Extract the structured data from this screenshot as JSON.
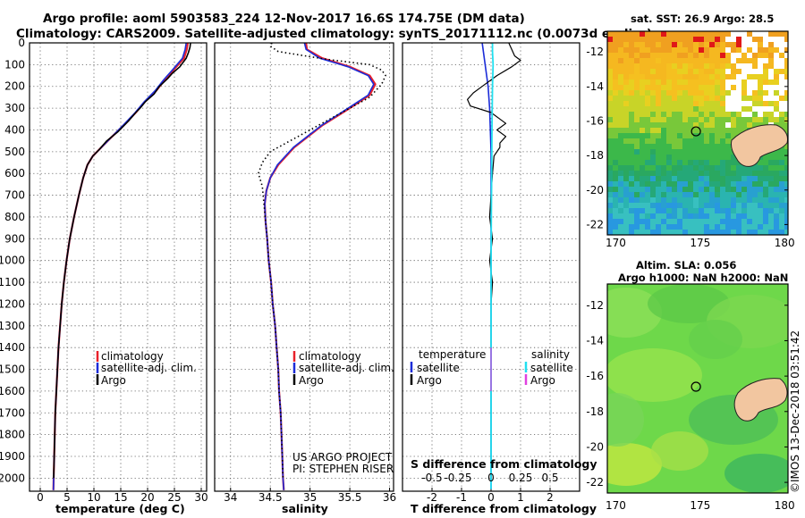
{
  "header": {
    "title_line1": "Argo profile: aoml 5903583_224 12-Nov-2017 16.6S 174.75E (DM data)",
    "title_line2": "Climatology: CARS2009. Satellite-adjusted climatology: synTS_20171112.nc (0.0073d earlier)"
  },
  "colors": {
    "climatology": "#e8202a",
    "satellite": "#1b2cd8",
    "argo": "#000000",
    "satellite_salinity": "#21e0f0",
    "argo_salinity": "#e040e0"
  },
  "depth_axis": {
    "ticks": [
      0,
      100,
      200,
      300,
      400,
      500,
      600,
      700,
      800,
      900,
      1000,
      1100,
      1200,
      1300,
      1400,
      1500,
      1600,
      1700,
      1800,
      1900,
      2000
    ],
    "range": [
      0,
      2060
    ]
  },
  "legend": {
    "climatology": "climatology",
    "satellite_adj": "satellite-adj. clim.",
    "argo": "Argo",
    "temperature": "temperature",
    "salinity": "salinity",
    "satellite": "satellite"
  },
  "credits": {
    "line1": "US ARGO PROJECT",
    "line2": "PI: STEPHEN RISER"
  },
  "maps": {
    "sst_title": "sat. SST: 26.9 Argo: 28.5",
    "sla_title1": "Altim. SLA: 0.056",
    "sla_title2": "Argo h1000: NaN h2000: NaN",
    "lat_ticks": [
      "-12",
      "-14",
      "-16",
      "-18",
      "-20",
      "-22"
    ],
    "lon_ticks": [
      "170",
      "175",
      "180"
    ],
    "float_position": {
      "lat": -16.6,
      "lon": 174.75
    },
    "extent": {
      "lon": [
        169.5,
        180.2
      ],
      "lat": [
        -22.6,
        -10.8
      ]
    }
  },
  "footer": {
    "timestamp": "©IMOS 13-Dec-2018 03:51:42"
  },
  "chart_data": [
    {
      "type": "line",
      "name": "temperature",
      "xlabel": "temperature (deg C)",
      "ylabel": "depth",
      "xlim": [
        -2,
        31
      ],
      "ylim": [
        2060,
        0
      ],
      "xticks": [
        0,
        5,
        10,
        15,
        20,
        25,
        30
      ],
      "series": [
        {
          "name": "climatology",
          "points": [
            [
              27.5,
              0
            ],
            [
              27.3,
              30
            ],
            [
              26.8,
              70
            ],
            [
              25.0,
              120
            ],
            [
              23.2,
              170
            ],
            [
              21.6,
              220
            ],
            [
              19.5,
              270
            ],
            [
              17.8,
              320
            ],
            [
              15.5,
              380
            ],
            [
              13.0,
              440
            ],
            [
              11.0,
              490
            ],
            [
              9.8,
              520
            ],
            [
              8.8,
              560
            ],
            [
              8.0,
              620
            ],
            [
              7.2,
              700
            ],
            [
              6.3,
              800
            ],
            [
              5.5,
              900
            ],
            [
              4.9,
              1000
            ],
            [
              4.4,
              1100
            ],
            [
              4.0,
              1200
            ],
            [
              3.7,
              1300
            ],
            [
              3.4,
              1400
            ],
            [
              3.2,
              1500
            ],
            [
              3.0,
              1600
            ],
            [
              2.8,
              1700
            ],
            [
              2.7,
              1800
            ],
            [
              2.6,
              1900
            ],
            [
              2.5,
              2000
            ],
            [
              2.45,
              2055
            ]
          ]
        },
        {
          "name": "satellite-adj. clim.",
          "points": [
            [
              27.2,
              0
            ],
            [
              27.0,
              30
            ],
            [
              26.5,
              70
            ],
            [
              24.8,
              120
            ],
            [
              23.0,
              170
            ],
            [
              21.4,
              220
            ],
            [
              19.4,
              270
            ],
            [
              17.7,
              320
            ],
            [
              15.4,
              380
            ],
            [
              13.0,
              440
            ],
            [
              11.0,
              490
            ],
            [
              9.8,
              520
            ],
            [
              8.8,
              560
            ],
            [
              8.0,
              620
            ],
            [
              7.2,
              700
            ],
            [
              6.3,
              800
            ],
            [
              5.5,
              900
            ],
            [
              4.9,
              1000
            ],
            [
              4.4,
              1100
            ],
            [
              4.0,
              1200
            ],
            [
              3.7,
              1300
            ],
            [
              3.4,
              1400
            ],
            [
              3.2,
              1500
            ],
            [
              3.0,
              1600
            ],
            [
              2.8,
              1700
            ],
            [
              2.7,
              1800
            ],
            [
              2.6,
              1900
            ],
            [
              2.5,
              2000
            ],
            [
              2.45,
              2055
            ]
          ]
        },
        {
          "name": "Argo",
          "points": [
            [
              28.0,
              0
            ],
            [
              27.9,
              20
            ],
            [
              27.6,
              45
            ],
            [
              27.2,
              70
            ],
            [
              26.0,
              110
            ],
            [
              24.6,
              140
            ],
            [
              23.7,
              165
            ],
            [
              22.2,
              200
            ],
            [
              21.2,
              235
            ],
            [
              19.6,
              270
            ],
            [
              18.6,
              300
            ],
            [
              17.8,
              320
            ],
            [
              16.4,
              360
            ],
            [
              14.4,
              410
            ],
            [
              12.4,
              450
            ],
            [
              11.0,
              490
            ],
            [
              9.8,
              520
            ],
            [
              8.8,
              560
            ],
            [
              8.0,
              620
            ],
            [
              7.2,
              700
            ],
            [
              6.3,
              800
            ],
            [
              5.5,
              900
            ],
            [
              4.9,
              1000
            ],
            [
              4.4,
              1100
            ],
            [
              4.0,
              1200
            ],
            [
              3.7,
              1300
            ],
            [
              3.4,
              1400
            ],
            [
              3.2,
              1500
            ],
            [
              3.0,
              1600
            ],
            [
              2.8,
              1700
            ],
            [
              2.7,
              1800
            ],
            [
              2.6,
              1900
            ],
            [
              2.5,
              2000
            ]
          ]
        }
      ]
    },
    {
      "type": "line",
      "name": "salinity",
      "xlabel": "salinity",
      "ylabel": "depth",
      "xlim": [
        33.8,
        36.05
      ],
      "ylim": [
        2060,
        0
      ],
      "xticks": [
        34,
        34.5,
        35,
        35.5,
        36
      ],
      "series": [
        {
          "name": "climatology",
          "points": [
            [
              34.95,
              0
            ],
            [
              34.96,
              30
            ],
            [
              35.15,
              70
            ],
            [
              35.5,
              110
            ],
            [
              35.75,
              150
            ],
            [
              35.82,
              190
            ],
            [
              35.75,
              240
            ],
            [
              35.5,
              300
            ],
            [
              35.15,
              380
            ],
            [
              34.8,
              480
            ],
            [
              34.6,
              560
            ],
            [
              34.5,
              620
            ],
            [
              34.45,
              680
            ],
            [
              34.43,
              740
            ],
            [
              34.44,
              820
            ],
            [
              34.46,
              900
            ],
            [
              34.48,
              1000
            ],
            [
              34.51,
              1100
            ],
            [
              34.53,
              1200
            ],
            [
              34.56,
              1300
            ],
            [
              34.58,
              1400
            ],
            [
              34.6,
              1500
            ],
            [
              34.61,
              1600
            ],
            [
              34.63,
              1700
            ],
            [
              34.64,
              1800
            ],
            [
              34.65,
              1900
            ],
            [
              34.66,
              2000
            ],
            [
              34.67,
              2055
            ]
          ]
        },
        {
          "name": "satellite-adj. clim.",
          "points": [
            [
              34.93,
              0
            ],
            [
              34.95,
              30
            ],
            [
              35.12,
              70
            ],
            [
              35.48,
              110
            ],
            [
              35.73,
              150
            ],
            [
              35.8,
              190
            ],
            [
              35.73,
              240
            ],
            [
              35.48,
              300
            ],
            [
              35.14,
              380
            ],
            [
              34.79,
              480
            ],
            [
              34.59,
              560
            ],
            [
              34.5,
              620
            ],
            [
              34.45,
              680
            ],
            [
              34.43,
              740
            ],
            [
              34.44,
              820
            ],
            [
              34.46,
              900
            ],
            [
              34.48,
              1000
            ],
            [
              34.51,
              1100
            ],
            [
              34.53,
              1200
            ],
            [
              34.56,
              1300
            ],
            [
              34.58,
              1400
            ],
            [
              34.6,
              1500
            ],
            [
              34.61,
              1600
            ],
            [
              34.63,
              1700
            ],
            [
              34.64,
              1800
            ],
            [
              34.65,
              1900
            ],
            [
              34.66,
              2000
            ],
            [
              34.67,
              2055
            ]
          ]
        },
        {
          "name": "Argo",
          "points": [
            [
              34.52,
              0
            ],
            [
              34.5,
              15
            ],
            [
              34.6,
              40
            ],
            [
              35.2,
              75
            ],
            [
              35.75,
              100
            ],
            [
              35.9,
              125
            ],
            [
              35.95,
              150
            ],
            [
              35.9,
              190
            ],
            [
              35.75,
              250
            ],
            [
              35.2,
              360
            ],
            [
              34.8,
              440
            ],
            [
              34.5,
              500
            ],
            [
              34.4,
              550
            ],
            [
              34.35,
              600
            ],
            [
              34.4,
              660
            ],
            [
              34.42,
              740
            ],
            [
              34.44,
              820
            ],
            [
              34.46,
              900
            ],
            [
              34.48,
              1000
            ],
            [
              34.51,
              1100
            ],
            [
              34.53,
              1200
            ],
            [
              34.56,
              1300
            ],
            [
              34.58,
              1400
            ],
            [
              34.6,
              1500
            ],
            [
              34.61,
              1600
            ],
            [
              34.63,
              1700
            ],
            [
              34.64,
              1800
            ],
            [
              34.65,
              1900
            ],
            [
              34.66,
              2000
            ]
          ]
        }
      ]
    },
    {
      "type": "line",
      "name": "differences",
      "xlabel": "T difference from climatology",
      "secondary_xlabel": "S difference from climatology",
      "ylabel": "depth",
      "xlim": [
        -3,
        3
      ],
      "ylim": [
        2060,
        0
      ],
      "xticks": [
        -2,
        -1,
        0,
        1,
        2
      ],
      "secondary_xticks": [
        "-0.5",
        "-0.25",
        "0",
        "0.25",
        "0.5"
      ],
      "series": [
        {
          "name": "temperature satellite",
          "points": [
            [
              -0.3,
              0
            ],
            [
              -0.2,
              100
            ],
            [
              -0.1,
              200
            ],
            [
              -0.05,
              300
            ],
            [
              0,
              500
            ],
            [
              0,
              2050
            ]
          ]
        },
        {
          "name": "temperature Argo",
          "points": [
            [
              0.6,
              0
            ],
            [
              0.7,
              30
            ],
            [
              0.8,
              60
            ],
            [
              1.0,
              80
            ],
            [
              0.7,
              110
            ],
            [
              0.2,
              150
            ],
            [
              -0.3,
              200
            ],
            [
              -0.6,
              230
            ],
            [
              -0.8,
              260
            ],
            [
              -0.7,
              290
            ],
            [
              0.0,
              320
            ],
            [
              0.3,
              350
            ],
            [
              0.5,
              370
            ],
            [
              0.2,
              400
            ],
            [
              0.5,
              430
            ],
            [
              0.3,
              460
            ],
            [
              0.3,
              480
            ],
            [
              0.1,
              520
            ],
            [
              0.05,
              600
            ],
            [
              0,
              700
            ],
            [
              -0.05,
              800
            ],
            [
              0.05,
              900
            ],
            [
              -0.05,
              1000
            ],
            [
              0.05,
              1100
            ],
            [
              0,
              1200
            ],
            [
              0,
              1300
            ],
            [
              0,
              1400
            ],
            [
              0,
              1500
            ],
            [
              0,
              1600
            ],
            [
              0,
              1700
            ],
            [
              0,
              1800
            ],
            [
              0,
              1900
            ],
            [
              0,
              2000
            ]
          ]
        },
        {
          "name": "salinity satellite",
          "points": [
            [
              0.05,
              0
            ],
            [
              0.05,
              40
            ],
            [
              0.07,
              100
            ],
            [
              0.05,
              200
            ],
            [
              0.04,
              300
            ],
            [
              0.03,
              400
            ],
            [
              0.02,
              600
            ],
            [
              0.01,
              800
            ],
            [
              0,
              1000
            ],
            [
              0,
              1500
            ],
            [
              0,
              2050
            ]
          ]
        },
        {
          "name": "salinity Argo",
          "points": [
            [
              0.0,
              1400
            ],
            [
              0.0,
              1500
            ],
            [
              0.0,
              1600
            ]
          ]
        }
      ]
    }
  ]
}
